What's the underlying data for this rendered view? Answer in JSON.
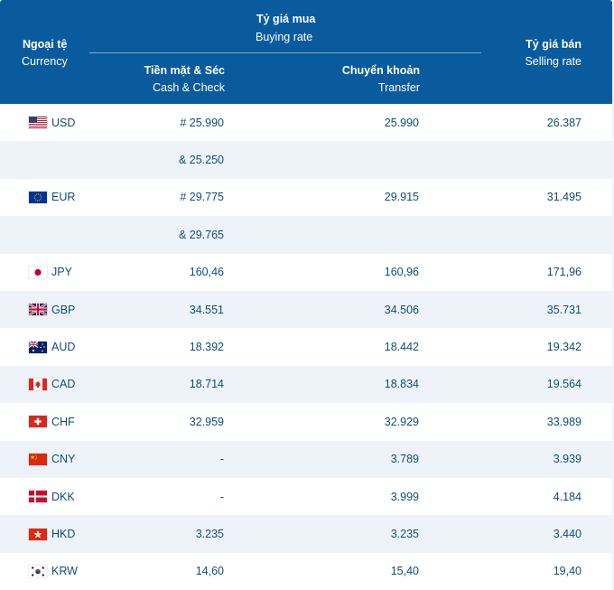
{
  "header": {
    "currency_vi": "Ngoại tệ",
    "currency_en": "Currency",
    "buying_vi": "Tỷ giá mua",
    "buying_en": "Buying rate",
    "cash_vi": "Tiền mặt & Séc",
    "cash_en": "Cash & Check",
    "transfer_vi": "Chuyển khoản",
    "transfer_en": "Transfer",
    "selling_vi": "Tỷ giá bán",
    "selling_en": "Selling rate"
  },
  "colors": {
    "header_bg": "#0a5b9e",
    "row_alt_bg": "#eef3fa",
    "text": "#0f4c81"
  },
  "rows": [
    {
      "flag": "us-flag-icon",
      "code": "USD",
      "cash": "# 25.990",
      "transfer": "25.990",
      "selling": "26.387"
    },
    {
      "flag": "",
      "code": "",
      "cash": "& 25.250",
      "transfer": "",
      "selling": ""
    },
    {
      "flag": "eu-flag-icon",
      "code": "EUR",
      "cash": "# 29.775",
      "transfer": "29.915",
      "selling": "31.495"
    },
    {
      "flag": "",
      "code": "",
      "cash": "& 29.765",
      "transfer": "",
      "selling": ""
    },
    {
      "flag": "jp-flag-icon",
      "code": "JPY",
      "cash": "160,46",
      "transfer": "160,96",
      "selling": "171,96"
    },
    {
      "flag": "gb-flag-icon",
      "code": "GBP",
      "cash": "34.551",
      "transfer": "34.506",
      "selling": "35.731"
    },
    {
      "flag": "au-flag-icon",
      "code": "AUD",
      "cash": "18.392",
      "transfer": "18.442",
      "selling": "19.342"
    },
    {
      "flag": "ca-flag-icon",
      "code": "CAD",
      "cash": "18.714",
      "transfer": "18.834",
      "selling": "19.564"
    },
    {
      "flag": "ch-flag-icon",
      "code": "CHF",
      "cash": "32.959",
      "transfer": "32.929",
      "selling": "33.989"
    },
    {
      "flag": "cn-flag-icon",
      "code": "CNY",
      "cash": "-",
      "transfer": "3.789",
      "selling": "3.939"
    },
    {
      "flag": "dk-flag-icon",
      "code": "DKK",
      "cash": "-",
      "transfer": "3.999",
      "selling": "4.184"
    },
    {
      "flag": "hk-flag-icon",
      "code": "HKD",
      "cash": "3.235",
      "transfer": "3.235",
      "selling": "3.440"
    },
    {
      "flag": "kr-flag-icon",
      "code": "KRW",
      "cash": "14,60",
      "transfer": "15,40",
      "selling": "19,40"
    }
  ]
}
